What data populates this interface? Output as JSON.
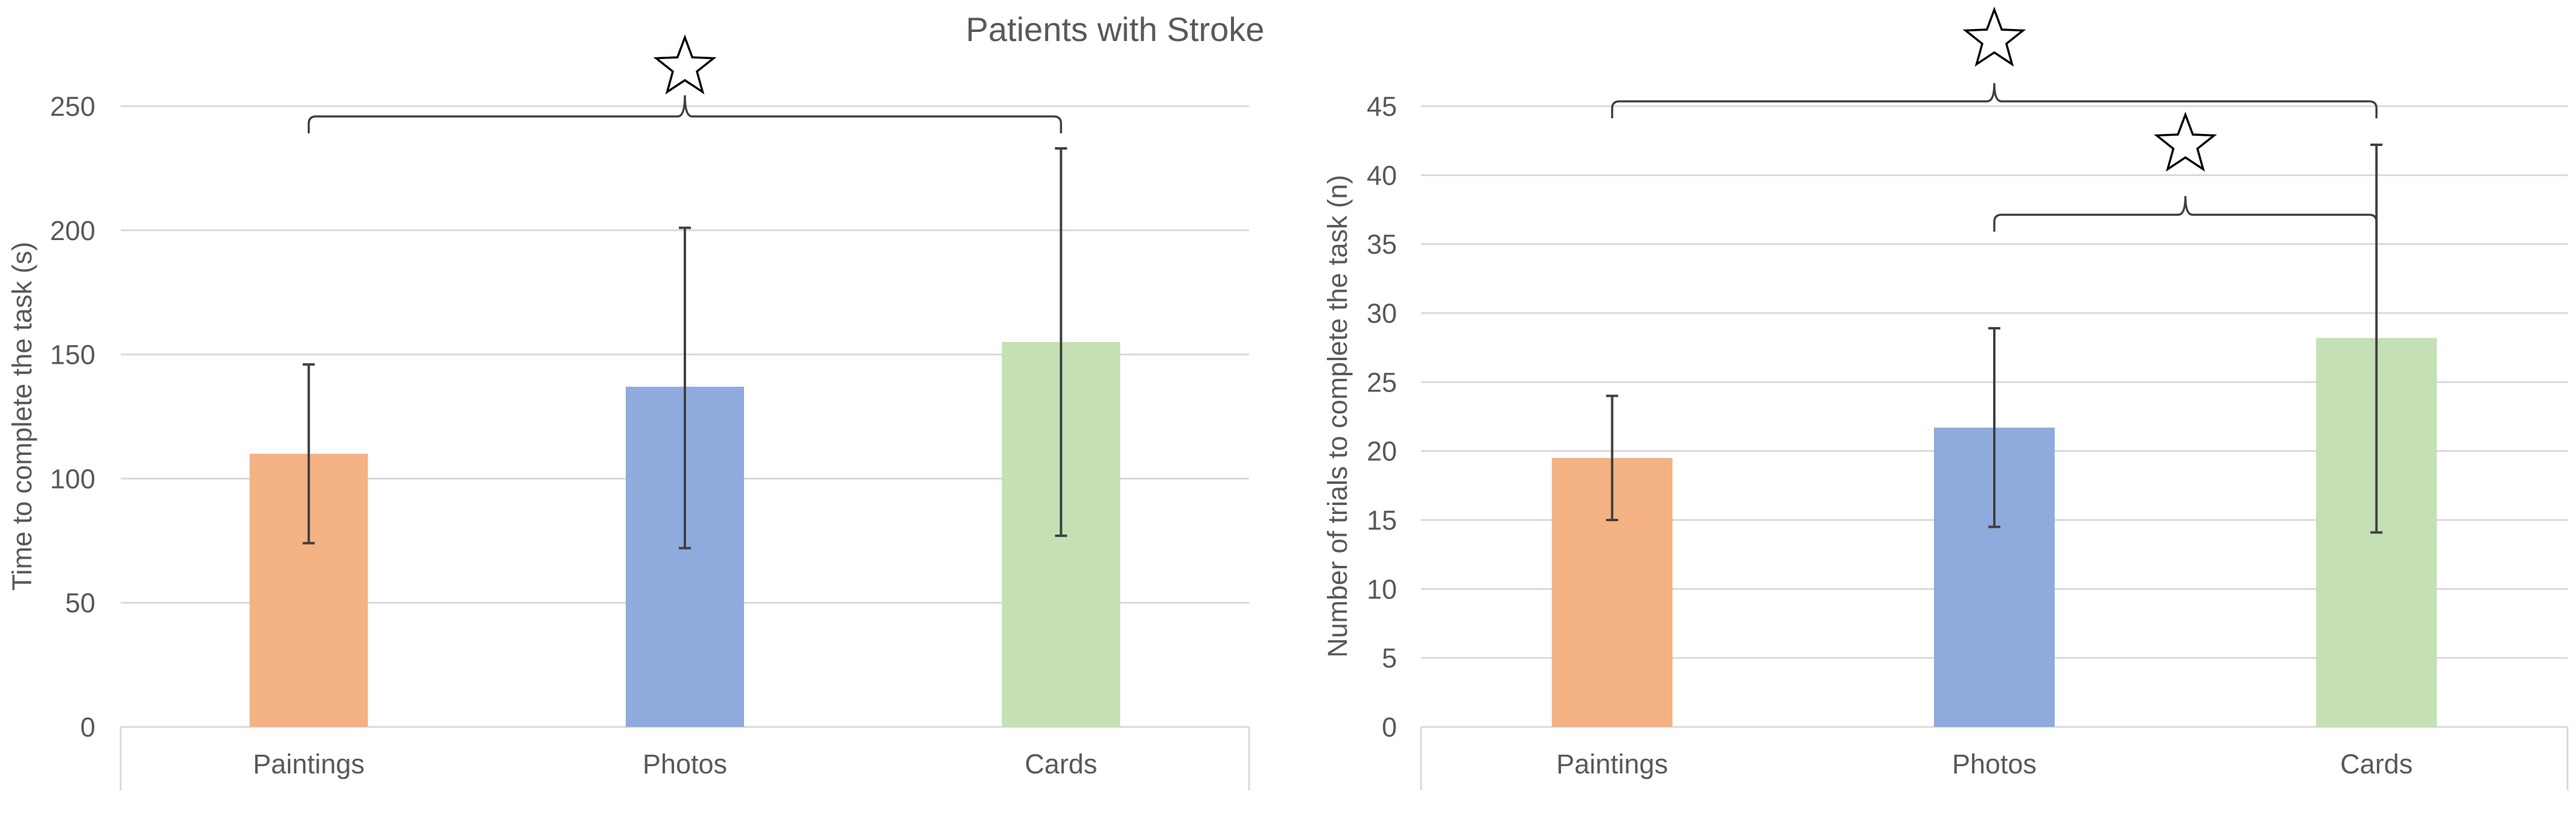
{
  "figure_title": "Patients with Stroke",
  "colors": {
    "Paintings": "#f4b183",
    "Photos": "#8faadc",
    "Cards": "#c5e0b4"
  },
  "chart_data": [
    {
      "type": "bar",
      "categories": [
        "Paintings",
        "Photos",
        "Cards"
      ],
      "values": [
        110,
        137,
        155
      ],
      "error_low": [
        74,
        72,
        77
      ],
      "error_high": [
        146,
        201,
        233
      ],
      "ylabel": "Time to complete the task (s)",
      "xlabel": "",
      "ylim": [
        0,
        250
      ],
      "yticks": [
        0,
        50,
        100,
        150,
        200,
        250
      ],
      "grid": true,
      "significance": [
        {
          "from": "Paintings",
          "to": "Cards",
          "symbol": "☆"
        }
      ]
    },
    {
      "type": "bar",
      "categories": [
        "Paintings",
        "Photos",
        "Cards"
      ],
      "values": [
        19.5,
        21.7,
        28.2
      ],
      "error_low": [
        15,
        14.5,
        14.1
      ],
      "error_high": [
        24,
        28.9,
        42.2
      ],
      "ylabel": "Number of trials to complete the task (n)",
      "xlabel": "",
      "ylim": [
        0,
        45
      ],
      "yticks": [
        0,
        5,
        10,
        15,
        20,
        25,
        30,
        35,
        40,
        45
      ],
      "grid": true,
      "significance": [
        {
          "from": "Paintings",
          "to": "Cards",
          "symbol": "☆"
        },
        {
          "from": "Photos",
          "to": "Cards",
          "symbol": "☆"
        }
      ]
    }
  ]
}
